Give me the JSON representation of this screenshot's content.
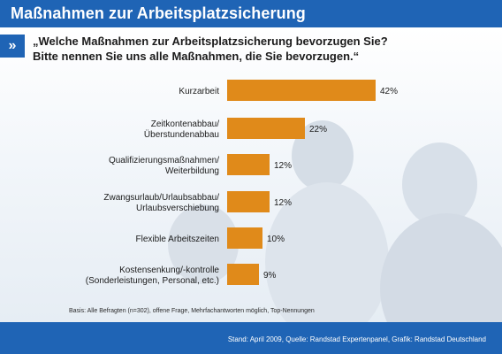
{
  "header": {
    "title": "Maßnahmen zur Arbeitsplatzsicherung"
  },
  "question": {
    "arrow_glyph": "»",
    "line1": "„Welche Maßnahmen zur Arbeitsplatzsicherung bevorzugen Sie?",
    "line2": "Bitte nennen Sie uns alle Maßnahmen, die Sie bevorzugen.“"
  },
  "footnote": "Basis: Alle Befragten (n=302), offene Frage, Mehrfachantworten möglich, Top-Nennungen",
  "footer": "Stand: April 2009, Quelle: Randstad Expertenpanel, Grafik: Randstad Deutschland",
  "colors": {
    "brand_blue": "#1f64b5",
    "bar": "#e08a1a"
  },
  "chart_data": {
    "type": "bar",
    "orientation": "horizontal",
    "categories": [
      [
        "Kurzarbeit"
      ],
      [
        "Zeitkontenabbau/",
        "Überstundenabbau"
      ],
      [
        "Qualifizierungsmaßnahmen/",
        "Weiterbildung"
      ],
      [
        "Zwangsurlaub/Urlaubsabbau/",
        "Urlaubsverschiebung"
      ],
      [
        "Flexible Arbeitszeiten"
      ],
      [
        "Kostensenkung/-kontrolle",
        "(Sonderleistungen, Personal, etc.)"
      ]
    ],
    "values": [
      42,
      22,
      12,
      12,
      10,
      9
    ],
    "value_labels": [
      "42%",
      "22%",
      "12%",
      "12%",
      "10%",
      "9%"
    ],
    "unit": "%",
    "xlim": [
      0,
      42
    ],
    "grid": false,
    "legend": "none"
  }
}
